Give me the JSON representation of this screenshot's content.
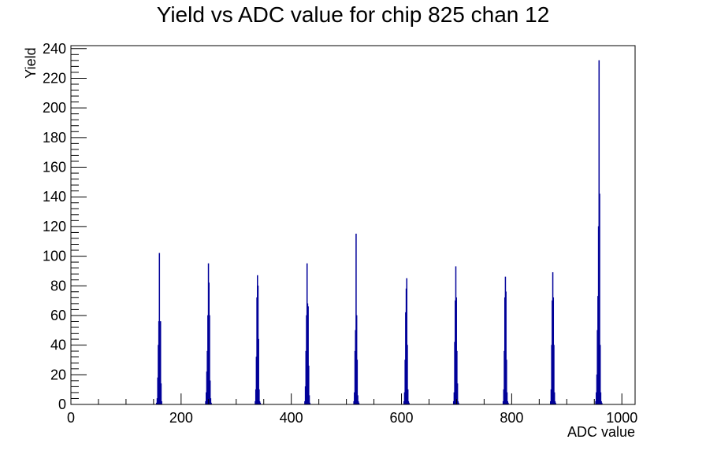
{
  "chart_data": {
    "type": "bar",
    "title": "Yield vs ADC value for chip 825 chan 12",
    "xlabel": "ADC value",
    "ylabel": "Yield",
    "xlim": [
      0,
      1024
    ],
    "ylim": [
      0,
      242
    ],
    "x_ticks": [
      0,
      200,
      400,
      600,
      800,
      1000
    ],
    "y_ticks": [
      0,
      20,
      40,
      60,
      80,
      100,
      120,
      140,
      160,
      180,
      200,
      220,
      240
    ],
    "grid": false,
    "legend": "none",
    "line_color": "#000099",
    "series": [
      {
        "bin_width": 1,
        "x": [
          155,
          156,
          157,
          158,
          159,
          160,
          161,
          162,
          163,
          164,
          244,
          245,
          246,
          247,
          248,
          249,
          250,
          251,
          252,
          253,
          254,
          334,
          335,
          336,
          337,
          338,
          339,
          340,
          341,
          342,
          343,
          424,
          425,
          426,
          427,
          428,
          429,
          430,
          431,
          432,
          433,
          513,
          514,
          515,
          516,
          517,
          518,
          519,
          520,
          521,
          522,
          604,
          605,
          606,
          607,
          608,
          609,
          610,
          611,
          612,
          613,
          694,
          695,
          696,
          697,
          698,
          699,
          700,
          701,
          702,
          703,
          784,
          785,
          786,
          787,
          788,
          789,
          790,
          791,
          792,
          793,
          870,
          871,
          872,
          873,
          874,
          875,
          876,
          877,
          878,
          879,
          952,
          953,
          954,
          955,
          956,
          957,
          958,
          959,
          960,
          961,
          962,
          963
        ],
        "y": [
          1,
          4,
          18,
          40,
          56,
          102,
          50,
          56,
          14,
          2,
          2,
          8,
          22,
          36,
          60,
          95,
          82,
          60,
          16,
          4,
          1,
          2,
          10,
          32,
          72,
          87,
          80,
          44,
          10,
          2,
          1,
          2,
          12,
          36,
          60,
          95,
          68,
          66,
          26,
          6,
          1,
          2,
          8,
          36,
          50,
          115,
          60,
          30,
          6,
          2,
          1,
          2,
          8,
          30,
          62,
          78,
          85,
          40,
          10,
          2,
          1,
          2,
          8,
          42,
          70,
          93,
          72,
          36,
          14,
          2,
          1,
          2,
          10,
          36,
          72,
          86,
          76,
          30,
          8,
          2,
          1,
          2,
          10,
          40,
          70,
          89,
          72,
          40,
          8,
          2,
          1,
          2,
          8,
          20,
          50,
          73,
          120,
          232,
          142,
          40,
          8,
          2,
          1
        ]
      }
    ]
  }
}
